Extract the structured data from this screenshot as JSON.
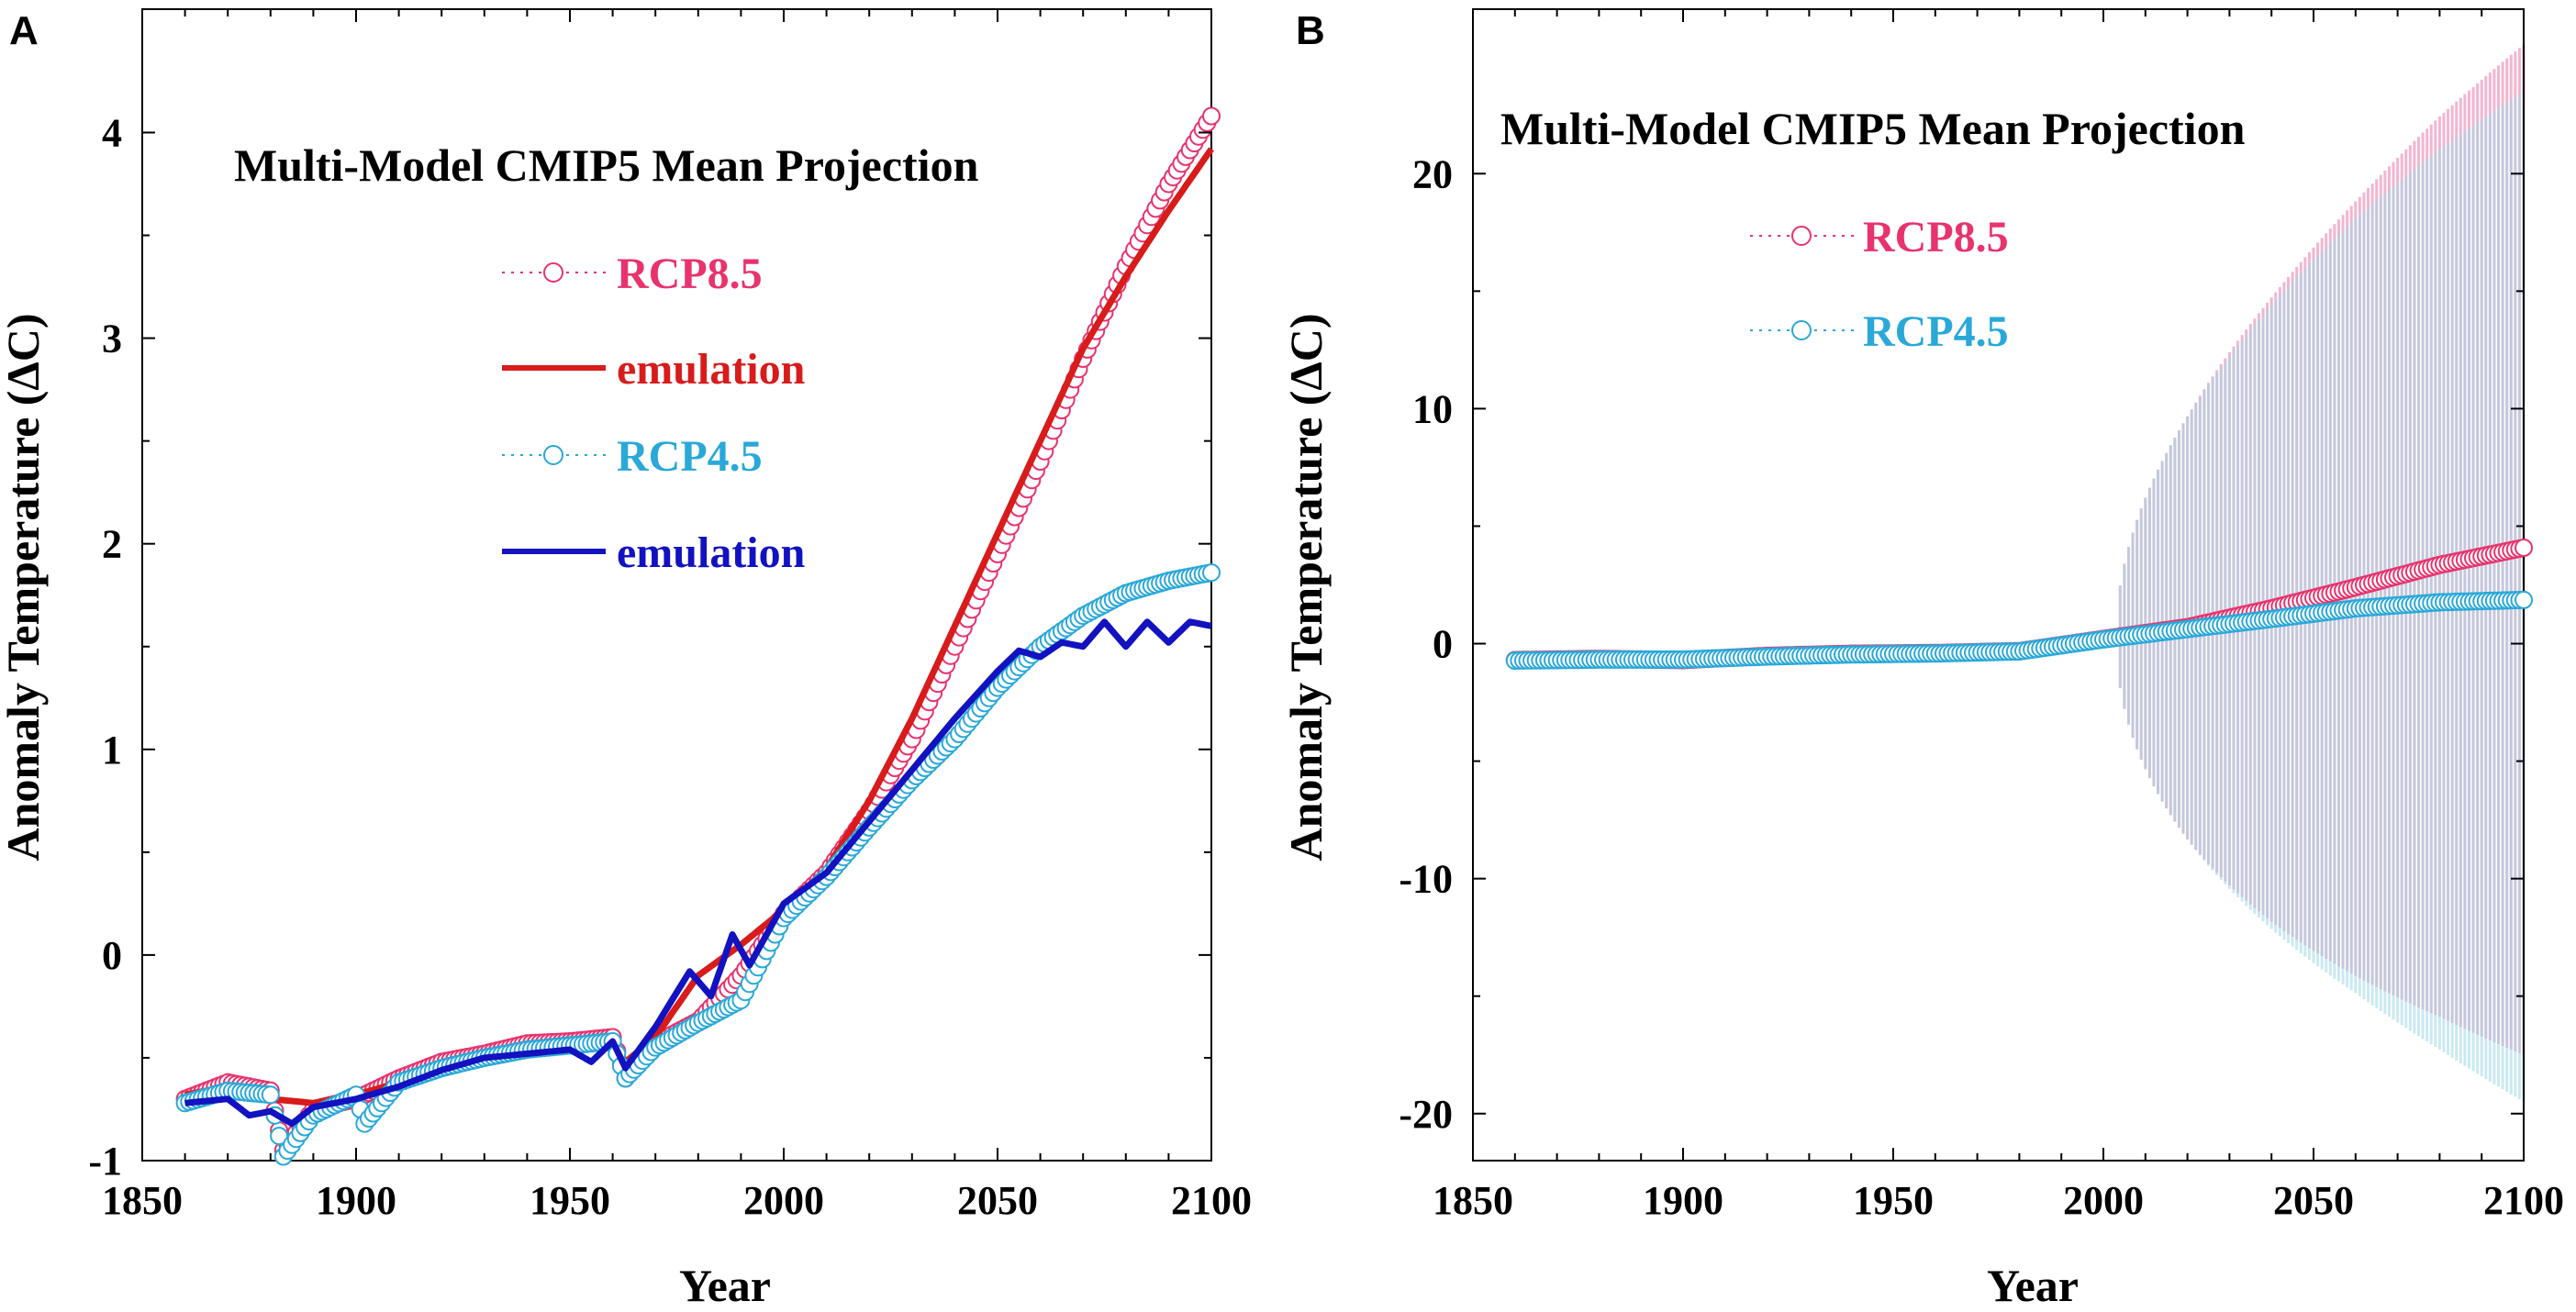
{
  "colors": {
    "rcp85": "#e8336d",
    "rcp85_emulation": "#d81b1b",
    "rcp45": "#2aa8d8",
    "rcp45_emulation": "#1212c0",
    "band_rcp85": "#f2a9c8",
    "band_rcp45": "#9fd8e8"
  },
  "chart_data": [
    {
      "panel": "A",
      "type": "line",
      "title": "Multi-Model CMIP5 Mean Projection",
      "xlabel": "Year",
      "ylabel": "Anomaly Temperature (ΔC)",
      "xlim": [
        1850,
        2100
      ],
      "ylim": [
        -1,
        4.6
      ],
      "xticks": [
        "1850",
        "1900",
        "1950",
        "2000",
        "2050",
        "2100"
      ],
      "yticks": [
        "-1",
        "0",
        "1",
        "2",
        "3",
        "4"
      ],
      "legend": [
        "RCP8.5",
        "emulation",
        "RCP4.5",
        "emulation"
      ],
      "series": [
        {
          "name": "RCP8.5",
          "style": "markers",
          "x": [
            1860,
            1870,
            1880,
            1883,
            1890,
            1900,
            1910,
            1920,
            1930,
            1940,
            1950,
            1960,
            1963,
            1970,
            1980,
            1990,
            2000,
            2010,
            2020,
            2030,
            2040,
            2050,
            2060,
            2070,
            2080,
            2090,
            2100
          ],
          "y": [
            -0.7,
            -0.62,
            -0.66,
            -0.95,
            -0.75,
            -0.7,
            -0.6,
            -0.52,
            -0.48,
            -0.43,
            -0.42,
            -0.4,
            -0.6,
            -0.43,
            -0.32,
            -0.1,
            0.2,
            0.4,
            0.7,
            1.05,
            1.5,
            1.95,
            2.4,
            2.9,
            3.35,
            3.75,
            4.08
          ]
        },
        {
          "name": "emulation",
          "style": "line",
          "x": [
            1860,
            1870,
            1880,
            1890,
            1900,
            1910,
            1920,
            1930,
            1940,
            1950,
            1960,
            1963,
            1970,
            1980,
            1990,
            2000,
            2010,
            2020,
            2030,
            2040,
            2050,
            2060,
            2070,
            2080,
            2090,
            2100
          ],
          "y": [
            -0.68,
            -0.64,
            -0.7,
            -0.72,
            -0.68,
            -0.62,
            -0.54,
            -0.5,
            -0.46,
            -0.44,
            -0.42,
            -0.52,
            -0.4,
            -0.1,
            0.05,
            0.22,
            0.42,
            0.75,
            1.15,
            1.6,
            2.05,
            2.5,
            2.95,
            3.3,
            3.62,
            3.92
          ]
        },
        {
          "name": "RCP4.5",
          "style": "markers",
          "x": [
            1860,
            1870,
            1880,
            1883,
            1890,
            1900,
            1902,
            1910,
            1920,
            1930,
            1940,
            1950,
            1960,
            1963,
            1970,
            1980,
            1990,
            2000,
            2010,
            2020,
            2030,
            2040,
            2050,
            2060,
            2070,
            2080,
            2090,
            2100
          ],
          "y": [
            -0.72,
            -0.66,
            -0.68,
            -0.98,
            -0.78,
            -0.68,
            -0.82,
            -0.62,
            -0.55,
            -0.5,
            -0.46,
            -0.44,
            -0.42,
            -0.6,
            -0.45,
            -0.33,
            -0.22,
            0.18,
            0.38,
            0.62,
            0.85,
            1.05,
            1.3,
            1.5,
            1.65,
            1.76,
            1.82,
            1.86
          ]
        },
        {
          "name": "emulation",
          "style": "line",
          "x": [
            1860,
            1870,
            1875,
            1880,
            1885,
            1890,
            1900,
            1910,
            1920,
            1930,
            1940,
            1950,
            1955,
            1960,
            1963,
            1970,
            1978,
            1983,
            1988,
            1992,
            2000,
            2010,
            2020,
            2030,
            2040,
            2050,
            2055,
            2060,
            2065,
            2070,
            2075,
            2080,
            2085,
            2090,
            2095,
            2100
          ],
          "y": [
            -0.72,
            -0.7,
            -0.78,
            -0.76,
            -0.82,
            -0.74,
            -0.7,
            -0.64,
            -0.56,
            -0.5,
            -0.48,
            -0.46,
            -0.52,
            -0.42,
            -0.55,
            -0.35,
            -0.08,
            -0.2,
            0.1,
            -0.05,
            0.25,
            0.4,
            0.65,
            0.9,
            1.15,
            1.38,
            1.48,
            1.45,
            1.52,
            1.5,
            1.62,
            1.5,
            1.62,
            1.52,
            1.62,
            1.6
          ]
        }
      ]
    },
    {
      "panel": "B",
      "type": "line",
      "title": "Multi-Model CMIP5 Mean Projection",
      "xlabel": "Year",
      "ylabel": "Anomaly Temperature (ΔC)",
      "xlim": [
        1850,
        2100
      ],
      "ylim": [
        -22,
        27
      ],
      "xticks": [
        "1850",
        "1900",
        "1950",
        "2000",
        "2050",
        "2100"
      ],
      "yticks": [
        "-20",
        "-10",
        "0",
        "10",
        "20"
      ],
      "legend": [
        "RCP8.5",
        "RCP4.5"
      ],
      "series": [
        {
          "name": "RCP8.5",
          "style": "markers",
          "x": [
            1860,
            1880,
            1900,
            1920,
            1940,
            1960,
            1980,
            2000,
            2020,
            2040,
            2060,
            2080,
            2100
          ],
          "y": [
            -0.7,
            -0.65,
            -0.7,
            -0.52,
            -0.43,
            -0.4,
            -0.32,
            0.2,
            0.7,
            1.5,
            2.4,
            3.35,
            4.08
          ]
        },
        {
          "name": "RCP4.5",
          "style": "markers",
          "x": [
            1860,
            1880,
            1900,
            1920,
            1940,
            1960,
            1980,
            2000,
            2020,
            2040,
            2060,
            2080,
            2100
          ],
          "y": [
            -0.72,
            -0.68,
            -0.68,
            -0.55,
            -0.46,
            -0.42,
            -0.33,
            0.18,
            0.62,
            1.05,
            1.5,
            1.76,
            1.86
          ]
        }
      ],
      "bands": [
        {
          "series": "RCP8.5",
          "x_start": 2003,
          "x_end": 2100,
          "upper_end": 25.5,
          "lower_end": -17.5
        },
        {
          "series": "RCP4.5",
          "x_start": 2003,
          "x_end": 2100,
          "upper_end": 23.5,
          "lower_end": -19.5
        }
      ]
    }
  ],
  "panel_labels": [
    "A",
    "B"
  ]
}
